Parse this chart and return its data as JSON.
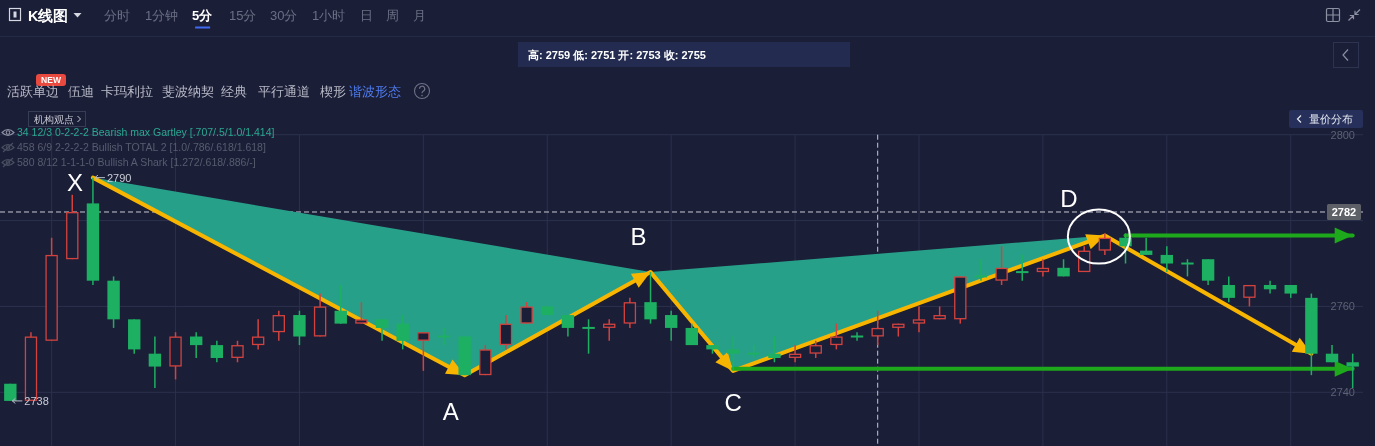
{
  "chart_data": {
    "type": "candlestick",
    "title": "K线图",
    "categories": [
      null,
      null,
      null,
      null,
      null,
      null,
      null,
      null,
      null,
      null,
      null,
      null,
      null,
      null,
      null,
      null,
      null,
      null,
      null,
      null,
      null,
      null,
      null,
      null,
      null,
      null,
      null,
      null,
      null,
      null,
      null,
      null,
      null,
      null,
      null,
      null,
      null,
      null,
      null,
      null,
      null,
      null,
      null,
      null,
      null,
      null,
      null,
      null,
      null,
      null,
      null,
      null,
      null,
      null,
      null,
      null,
      null,
      null,
      null,
      null,
      null,
      null,
      null,
      null,
      null,
      null
    ],
    "ohlc": [
      [
        2742,
        2742,
        2738,
        2738
      ],
      [
        2738,
        2754,
        2738,
        2753
      ],
      [
        2752,
        2776,
        2752,
        2772
      ],
      [
        2771,
        2786,
        2771,
        2782
      ],
      [
        2784,
        2790,
        2765,
        2766
      ],
      [
        2766,
        2767,
        2755,
        2757
      ],
      [
        2757,
        2757,
        2749,
        2750
      ],
      [
        2749,
        2753,
        2741,
        2746
      ],
      [
        2746,
        2754,
        2743,
        2753
      ],
      [
        2753,
        2754,
        2748,
        2751
      ],
      [
        2751,
        2752,
        2747,
        2748
      ],
      [
        2748,
        2752,
        2747,
        2751
      ],
      [
        2751,
        2757,
        2750,
        2753
      ],
      [
        2754,
        2759,
        2752,
        2758
      ],
      [
        2758,
        2759,
        2751,
        2753
      ],
      [
        2753,
        2763,
        2753,
        2760
      ],
      [
        2759,
        2765,
        2756,
        2756
      ],
      [
        2756,
        2761,
        2756,
        2757
      ],
      [
        2757,
        2757,
        2752,
        2755
      ],
      [
        2756,
        2758,
        2750,
        2752
      ],
      [
        2752,
        2754,
        2745,
        2754
      ],
      [
        2753,
        2755,
        2751,
        2753
      ],
      [
        2753,
        2753,
        2744,
        2744
      ],
      [
        2744,
        2751,
        2744,
        2750
      ],
      [
        2751,
        2758,
        2750,
        2756
      ],
      [
        2756,
        2761,
        2756,
        2760
      ],
      [
        2760,
        2760,
        2758,
        2758
      ],
      [
        2758,
        2758,
        2753,
        2755
      ],
      [
        2755,
        2757,
        2749,
        2755
      ],
      [
        2755,
        2757,
        2752,
        2756
      ],
      [
        2756,
        2762,
        2755,
        2761
      ],
      [
        2761,
        2768,
        2756,
        2757
      ],
      [
        2758,
        2759,
        2752,
        2755
      ],
      [
        2755,
        2756,
        2751,
        2751
      ],
      [
        2751,
        2751,
        2749,
        2750
      ],
      [
        2750,
        2753,
        2745,
        2749
      ],
      [
        2749,
        2751,
        2748,
        2749
      ],
      [
        2749,
        2753,
        2747,
        2748
      ],
      [
        2748,
        2751,
        2747,
        2749
      ],
      [
        2749,
        2752,
        2748,
        2751
      ],
      [
        2751,
        2756,
        2750,
        2753
      ],
      [
        2753,
        2754,
        2752,
        2753
      ],
      [
        2753,
        2759,
        2751,
        2755
      ],
      [
        2755,
        2756,
        2753,
        2756
      ],
      [
        2756,
        2760,
        2754,
        2757
      ],
      [
        2757,
        2760,
        2757,
        2758
      ],
      [
        2757,
        2767,
        2756,
        2767
      ],
      [
        2767,
        2771,
        2766,
        2767
      ],
      [
        2766,
        2774,
        2765,
        2769
      ],
      [
        2768,
        2772,
        2766,
        2768
      ],
      [
        2768,
        2771,
        2767,
        2769
      ],
      [
        2769,
        2771,
        2767,
        2767
      ],
      [
        2768,
        2774,
        2768,
        2773
      ],
      [
        2773,
        2777,
        2772,
        2776
      ],
      [
        2776,
        2777,
        2770,
        2774
      ],
      [
        2773,
        2776,
        2772,
        2772
      ],
      [
        2772,
        2774,
        2768,
        2770
      ],
      [
        2770,
        2771,
        2767,
        2770
      ],
      [
        2771,
        2771,
        2765,
        2766
      ],
      [
        2765,
        2767,
        2761,
        2762
      ],
      [
        2762,
        2765,
        2760,
        2765
      ],
      [
        2765,
        2766,
        2763,
        2764
      ],
      [
        2765,
        2765,
        2762,
        2763
      ],
      [
        2762,
        2763,
        2744,
        2749
      ],
      [
        2749,
        2751,
        2747,
        2747
      ],
      [
        2747,
        2749,
        2741,
        2746
      ]
    ],
    "colors": [
      "#1eb062",
      "#d2433f",
      "#d2433f",
      "#d2433f",
      "#1eb062",
      "#1eb062",
      "#1eb062",
      "#1eb062",
      "#d2433f",
      "#1eb062",
      "#1eb062",
      "#d2433f",
      "#d2433f",
      "#d2433f",
      "#1eb062",
      "#d2433f",
      "#1eb062",
      "#d2433f",
      "#1eb062",
      "#1eb062",
      "#d2433f",
      "#1eb062",
      "#1eb062",
      "#d2433f",
      "#d2433f",
      "#d2433f",
      "#1eb062",
      "#1eb062",
      "#1eb062",
      "#d2433f",
      "#d2433f",
      "#1eb062",
      "#1eb062",
      "#1eb062",
      "#1eb062",
      "#1eb062",
      "#1eb062",
      "#1eb062",
      "#d2433f",
      "#d2433f",
      "#d2433f",
      "#1eb062",
      "#d2433f",
      "#d2433f",
      "#d2433f",
      "#d2433f",
      "#d2433f",
      "#1eb062",
      "#d2433f",
      "#1eb062",
      "#d2433f",
      "#1eb062",
      "#d2433f",
      "#d2433f",
      "#1eb062",
      "#1eb062",
      "#1eb062",
      "#1eb062",
      "#1eb062",
      "#1eb062",
      "#d2433f",
      "#1eb062",
      "#1eb062",
      "#1eb062",
      "#1eb062",
      "#1eb062"
    ],
    "series": [
      {
        "type": "line",
        "color": "#f8b500",
        "values": [
          null,
          null,
          null,
          null,
          2790,
          null,
          null,
          null,
          null,
          null,
          null,
          null,
          null,
          null,
          null,
          null,
          null,
          null,
          null,
          null,
          null,
          null,
          2744,
          null,
          null,
          null,
          null,
          null,
          null,
          null,
          null,
          2768,
          null,
          null,
          null,
          2745,
          null,
          null,
          null,
          null,
          null,
          null,
          null,
          null,
          null,
          null,
          null,
          null,
          null,
          null,
          null,
          null,
          null,
          2776.5,
          null,
          null,
          null,
          null,
          null,
          null,
          null,
          null,
          null,
          2749,
          null,
          null
        ],
        "value_labels": [
          null,
          null,
          null,
          null,
          "X",
          null,
          null,
          null,
          null,
          null,
          null,
          null,
          null,
          null,
          null,
          null,
          null,
          null,
          null,
          null,
          null,
          null,
          "A",
          null,
          null,
          null,
          null,
          null,
          null,
          null,
          null,
          "B",
          null,
          null,
          null,
          "C",
          null,
          null,
          null,
          null,
          null,
          null,
          null,
          null,
          null,
          null,
          null,
          null,
          null,
          null,
          null,
          null,
          null,
          "D",
          null,
          null,
          null,
          null,
          null,
          null,
          null,
          null,
          null,
          null,
          null,
          null
        ]
      },
      {
        "type": "line",
        "color": "#1ea81c",
        "values": [
          null,
          null,
          null,
          null,
          null,
          null,
          null,
          null,
          null,
          null,
          null,
          null,
          null,
          null,
          null,
          null,
          null,
          null,
          null,
          null,
          null,
          null,
          null,
          null,
          null,
          null,
          null,
          null,
          null,
          null,
          null,
          null,
          null,
          null,
          null,
          null,
          null,
          null,
          null,
          null,
          null,
          null,
          null,
          null,
          null,
          null,
          null,
          null,
          null,
          null,
          null,
          null,
          null,
          null,
          2776.5,
          null,
          null,
          null,
          null,
          null,
          null,
          null,
          null,
          null,
          null,
          2776.5
        ]
      },
      {
        "type": "line",
        "color": "#1ea81c",
        "values": [
          null,
          null,
          null,
          null,
          null,
          null,
          null,
          null,
          null,
          null,
          null,
          null,
          null,
          null,
          null,
          null,
          null,
          null,
          null,
          null,
          null,
          null,
          null,
          null,
          null,
          null,
          null,
          null,
          null,
          null,
          null,
          null,
          null,
          null,
          null,
          2745.5,
          null,
          null,
          null,
          null,
          null,
          null,
          null,
          null,
          null,
          null,
          null,
          null,
          null,
          null,
          null,
          null,
          null,
          null,
          null,
          null,
          null,
          null,
          null,
          null,
          null,
          null,
          null,
          null,
          null,
          2745.5
        ]
      }
    ],
    "ylim": [
      2727.5,
      2800
    ],
    "yticks": [
      2740,
      2760,
      {
        "value": 2780,
        "label": null
      },
      2800
    ],
    "grid": true,
    "tick_labels": "y",
    "ref_lines": [
      {
        "axis": "y",
        "value": 2782,
        "label": "2782",
        "line_style": "dashed",
        "color": "#c5c9d3"
      }
    ],
    "annotations": [
      "分时",
      "1分钟",
      "5分",
      "15分",
      "30分",
      "1小时",
      "日",
      "周",
      "月",
      "高: 2759 低: 2751 开: 2753 收: 2755",
      "NEW",
      "活跃单边",
      "伍迪",
      "卡玛利拉",
      "斐波纳契",
      "经典",
      "平行通道",
      "楔形",
      "谐波形态",
      "机构观点",
      "量价分布",
      "34 12/3 0-2-2-2 Bearish max Gartley [.707/.5/1.0/1.414]",
      "458 6/9 2-2-2-2 Bullish TOTAL 2 [1.0/.786/.618/1.618]",
      "580 8/12 1-1-1-0 Bullish A Shark [1.272/.618/.886/-]",
      "2790",
      "2738"
    ]
  }
}
